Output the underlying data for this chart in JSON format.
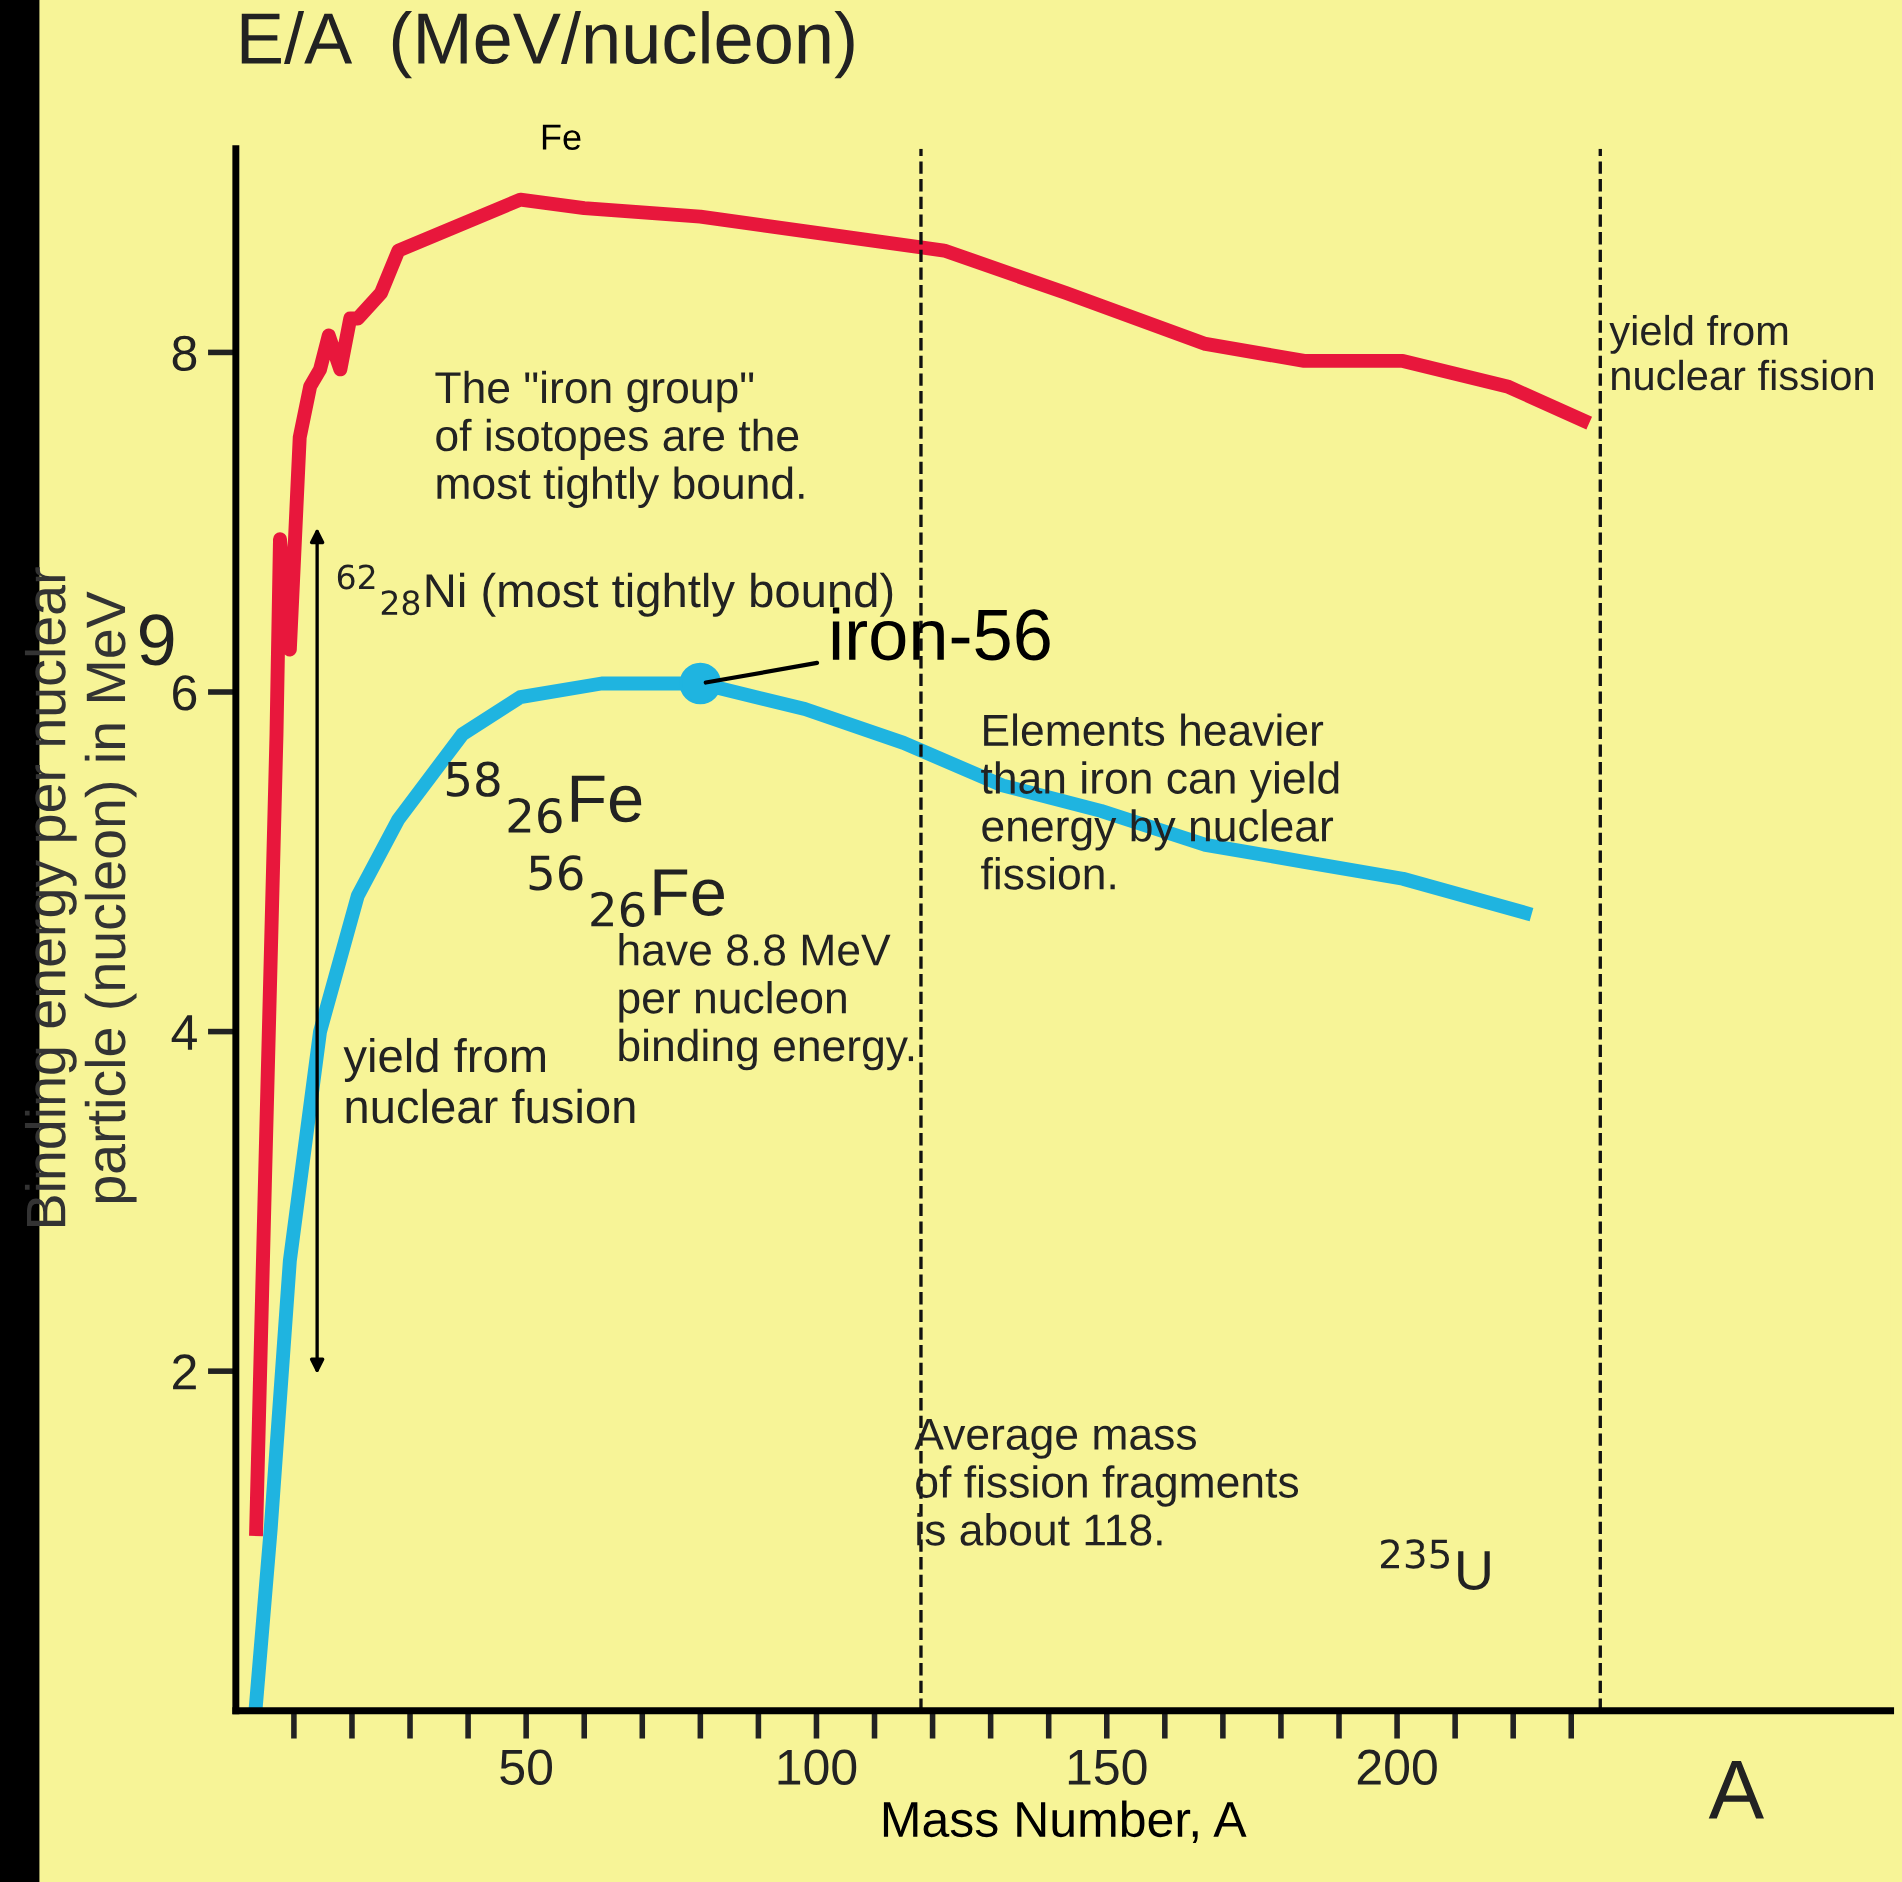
{
  "chart_data": {
    "type": "line",
    "xlabel": "Mass Number, A",
    "ylabel": "Binding energy per nuclear\nparticle (nucleon) in MeV",
    "xlim": [
      0,
      285
    ],
    "ylim": [
      0,
      9.2
    ],
    "xticks": [
      {
        "value": 10,
        "label": null
      },
      {
        "value": 20,
        "label": null
      },
      {
        "value": 30,
        "label": null
      },
      {
        "value": 40,
        "label": null
      },
      50,
      {
        "value": 60,
        "label": null
      },
      {
        "value": 70,
        "label": null
      },
      {
        "value": 80,
        "label": null
      },
      {
        "value": 90,
        "label": null
      },
      100,
      {
        "value": 110,
        "label": null
      },
      {
        "value": 120,
        "label": null
      },
      {
        "value": 130,
        "label": null
      },
      {
        "value": 140,
        "label": null
      },
      150,
      {
        "value": 160,
        "label": null
      },
      {
        "value": 170,
        "label": null
      },
      {
        "value": 180,
        "label": null
      },
      {
        "value": 190,
        "label": null
      },
      200,
      {
        "value": 210,
        "label": null
      },
      {
        "value": 220,
        "label": null
      },
      {
        "value": 230,
        "label": null
      }
    ],
    "yticks": [
      2,
      4,
      6,
      8
    ],
    "grid": false,
    "legend": false,
    "marker": "none",
    "line_style": "solid",
    "series": [
      {
        "color": "#e8173c",
        "x": [
          3.5,
          5,
          7,
          7.6,
          9.3,
          11,
          12.8,
          14.5,
          16,
          18,
          19.7,
          21,
          25,
          28,
          35,
          49,
          60,
          80,
          101,
          122,
          143,
          167,
          184,
          201,
          219,
          232
        ],
        "values": [
          1.07,
          3.1,
          5.75,
          6.9,
          6.25,
          7.5,
          7.8,
          7.9,
          8.1,
          7.9,
          8.2,
          8.2,
          8.35,
          8.6,
          8.7,
          8.9,
          8.85,
          8.8,
          8.7,
          8.6,
          8.35,
          8.05,
          7.95,
          7.95,
          7.8,
          7.6
        ]
      },
      {
        "color": "#1fb4e0",
        "x": [
          3.5,
          6,
          9.3,
          14.5,
          21,
          28,
          39,
          49,
          63,
          80,
          98,
          115,
          132,
          149,
          167,
          184,
          201,
          222
        ],
        "values": [
          0.05,
          1.07,
          2.65,
          4.0,
          4.8,
          5.25,
          5.75,
          5.97,
          6.05,
          6.05,
          5.9,
          5.7,
          5.45,
          5.3,
          5.1,
          5.0,
          4.9,
          4.7
        ]
      }
    ],
    "ref_lines": [
      {
        "axis": "x",
        "value": 118,
        "label": null,
        "line_style": "dashed",
        "color": "#111111"
      },
      {
        "axis": "x",
        "value": 235,
        "label": null,
        "line_style": "dashed",
        "color": "#111111"
      }
    ],
    "annotations": [
      {
        "text": "Fe",
        "x": 56,
        "y": 8.9
      },
      {
        "text": "iron-56",
        "x": 80,
        "y": 6.05
      },
      "E/A  (MeV/nucleon)",
      "9",
      "The \"iron group\"\nof isotopes are the\nmost tightly bound.",
      "$^{62}$$_{28}$Ni (most tightly bound)",
      "$^{58}$$_{26}$Fe",
      "$^{56}$$_{26}$Fe",
      "have 8.8 MeV\nper nucleon\nbinding energy.",
      "Elements heavier\nthan iron can yield\nenergy by nuclear\nfission.",
      "yield from\nnuclear fusion",
      "yield from\nnuclear fission",
      "Average mass\nof fission fragments\nis about 118.",
      "$^{235}$U",
      "A"
    ]
  }
}
